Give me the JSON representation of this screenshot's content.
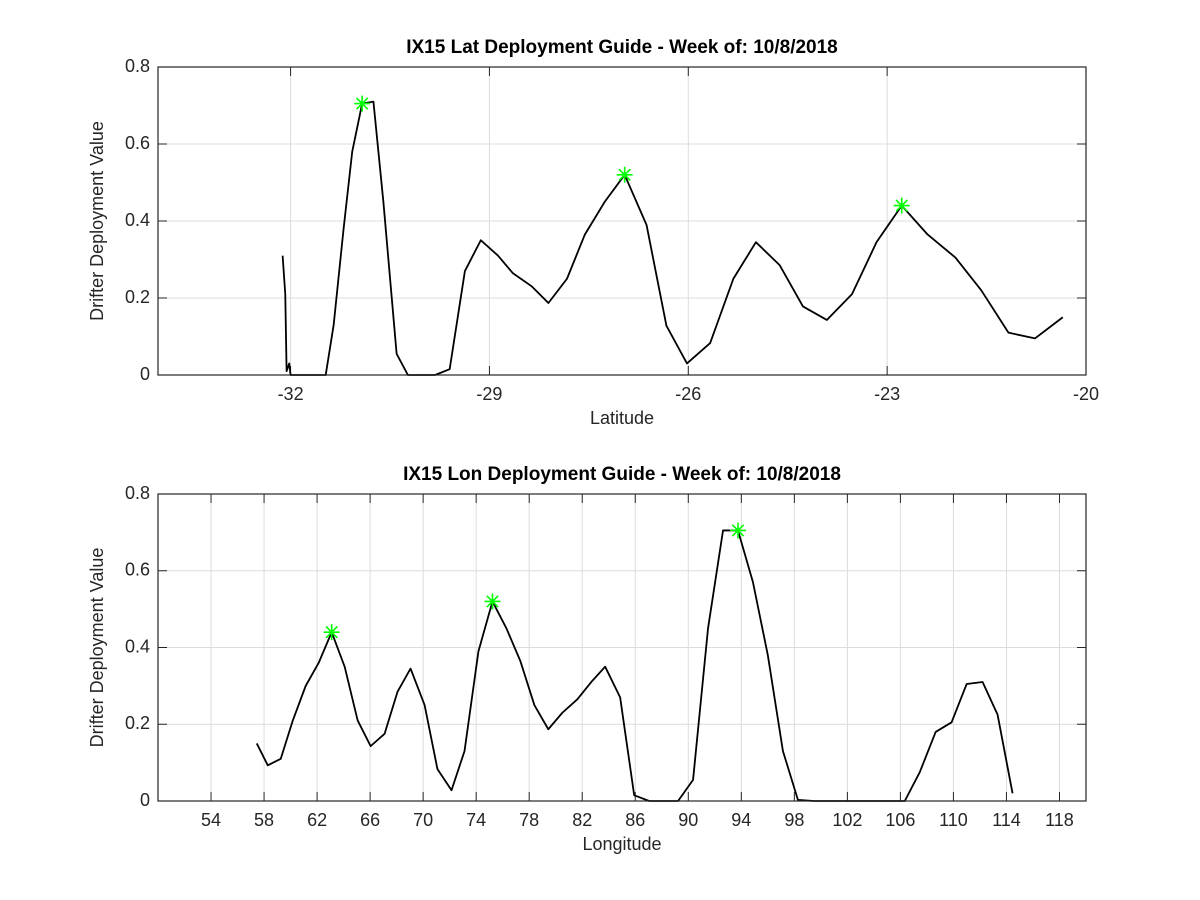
{
  "chart_data": [
    {
      "type": "line",
      "title": "IX15 Lat Deployment Guide - Week of: 10/8/2018",
      "xlabel": "Latitude",
      "ylabel": "Drifter Deployment Value",
      "xlim": [
        -34,
        -20
      ],
      "xticks": [
        -32,
        -29,
        -26,
        -23,
        -20
      ],
      "ylim": [
        0,
        0.8
      ],
      "yticks": [
        0,
        0.2,
        0.4,
        0.6,
        0.8
      ],
      "grid": true,
      "series": [
        {
          "color": "#000000",
          "marker": "none",
          "x": [
            -32.12,
            -32.08,
            -32.06,
            -32.02,
            -32.0,
            -31.47,
            -31.35,
            -31.2,
            -31.07,
            -30.92,
            -30.75,
            -30.6,
            -30.4,
            -30.23,
            -29.82,
            -29.6,
            -29.37,
            -29.13,
            -28.87,
            -28.65,
            -28.36,
            -28.11,
            -27.83,
            -27.56,
            -27.26,
            -26.96,
            -26.63,
            -26.33,
            -26.02,
            -25.67,
            -25.32,
            -24.98,
            -24.62,
            -24.27,
            -23.91,
            -23.53,
            -23.16,
            -22.78,
            -22.39,
            -21.97,
            -21.58,
            -21.17,
            -20.77,
            -20.35
          ],
          "values": [
            0.31,
            0.21,
            0.01,
            0.03,
            0,
            0,
            0.13,
            0.38,
            0.58,
            0.705,
            0.71,
            0.45,
            0.055,
            0,
            0,
            0.015,
            0.27,
            0.35,
            0.31,
            0.265,
            0.23,
            0.187,
            0.25,
            0.365,
            0.45,
            0.52,
            0.39,
            0.128,
            0.03,
            0.083,
            0.25,
            0.345,
            0.285,
            0.178,
            0.143,
            0.21,
            0.345,
            0.44,
            0.365,
            0.305,
            0.22,
            0.11,
            0.095,
            0.15
          ]
        },
        {
          "color": "#00ff00",
          "marker": "*",
          "x": [
            -30.92,
            -26.96,
            -22.78
          ],
          "values": [
            0.705,
            0.52,
            0.44
          ]
        }
      ]
    },
    {
      "type": "line",
      "title": "IX15 Lon Deployment Guide - Week of: 10/8/2018",
      "xlabel": "Longitude",
      "ylabel": "Drifter Deployment Value",
      "xlim": [
        50,
        120
      ],
      "xticks": [
        54,
        58,
        62,
        66,
        70,
        74,
        78,
        82,
        86,
        90,
        94,
        98,
        102,
        106,
        110,
        114,
        118
      ],
      "ylim": [
        0,
        0.8
      ],
      "yticks": [
        0,
        0.2,
        0.4,
        0.6,
        0.8
      ],
      "grid": true,
      "series": [
        {
          "color": "#000000",
          "marker": "none",
          "x": [
            57.45,
            58.28,
            59.26,
            60.17,
            61.14,
            62.12,
            63.1,
            64.08,
            65.06,
            66.04,
            67.09,
            68.07,
            69.05,
            70.11,
            71.08,
            72.14,
            73.12,
            74.17,
            75.23,
            76.28,
            77.33,
            78.39,
            79.44,
            80.5,
            81.63,
            82.68,
            83.73,
            84.86,
            85.92,
            87.05,
            89.23,
            90.36,
            91.49,
            92.62,
            93.75,
            94.88,
            96.0,
            97.14,
            98.27,
            99.47,
            104.0,
            106.33,
            107.46,
            108.66,
            109.86,
            111.0,
            112.2,
            113.33,
            114.46
          ],
          "values": [
            0.15,
            0.093,
            0.11,
            0.21,
            0.3,
            0.36,
            0.44,
            0.35,
            0.21,
            0.143,
            0.175,
            0.285,
            0.345,
            0.25,
            0.083,
            0.028,
            0.13,
            0.39,
            0.52,
            0.45,
            0.365,
            0.25,
            0.187,
            0.23,
            0.265,
            0.31,
            0.35,
            0.27,
            0.015,
            0,
            0,
            0.055,
            0.45,
            0.705,
            0.705,
            0.57,
            0.38,
            0.13,
            0.003,
            0,
            0,
            0,
            0.075,
            0.18,
            0.205,
            0.305,
            0.31,
            0.225,
            0.02
          ]
        },
        {
          "color": "#00ff00",
          "marker": "*",
          "x": [
            63.1,
            75.23,
            93.75
          ],
          "values": [
            0.44,
            0.52,
            0.705
          ]
        }
      ]
    }
  ]
}
